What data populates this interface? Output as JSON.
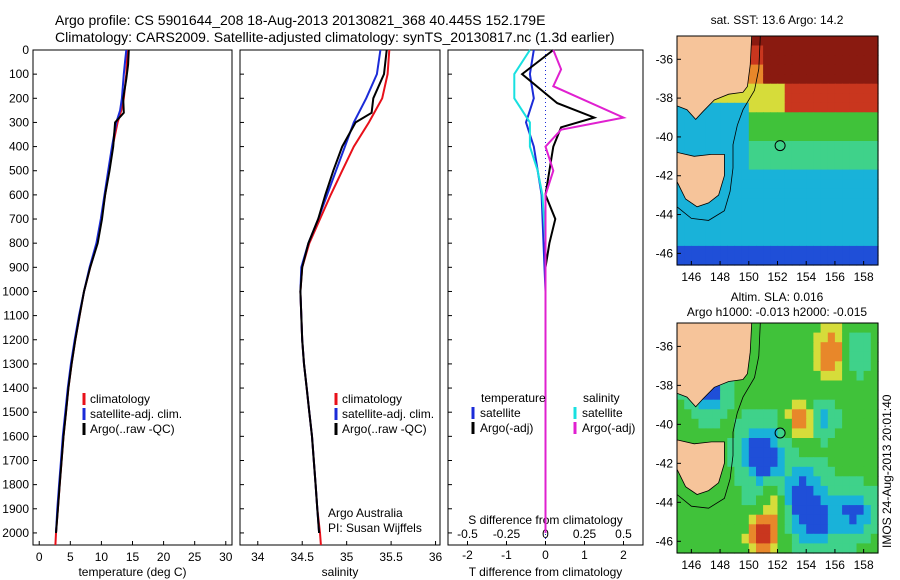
{
  "header": {
    "line1": "Argo profile: CS 5901644_208 18-Aug-2013 20130821_368 40.445S 152.179E",
    "line2": "Climatology: CARS2009. Satellite-adjusted climatology: synTS_20130817.nc (1.3d earlier)"
  },
  "stamp": "IMOS 24-Aug-2013 20:01:40",
  "colors": {
    "clim": "#e8101a",
    "sat": "#1b2bd8",
    "argo": "#000000",
    "sat_s": "#18e0e0",
    "argo_s": "#e020d0",
    "land": "#f6c49a",
    "zero": "#1b2bd8"
  },
  "chart_data": [
    {
      "type": "line",
      "panel": "temperature",
      "xlabel": "temperature (deg C)",
      "xlim": [
        -1,
        31
      ],
      "xticks": [
        0,
        5,
        10,
        15,
        20,
        25,
        30
      ],
      "ylim": [
        2050,
        0
      ],
      "yticks": [
        0,
        100,
        200,
        300,
        400,
        500,
        600,
        700,
        800,
        900,
        1000,
        1100,
        1200,
        1300,
        1400,
        1500,
        1600,
        1700,
        1800,
        1900,
        2000
      ],
      "legend": [
        "climatology",
        "satellite-adj. clim.",
        "Argo(..raw -QC)"
      ],
      "series": [
        {
          "name": "climatology",
          "color": "#e8101a",
          "points": [
            [
              14.2,
              0
            ],
            [
              14.1,
              50
            ],
            [
              14.0,
              100
            ],
            [
              13.6,
              200
            ],
            [
              13.2,
              250
            ],
            [
              12.6,
              300
            ],
            [
              11.8,
              400
            ],
            [
              11.2,
              500
            ],
            [
              10.6,
              600
            ],
            [
              10.0,
              700
            ],
            [
              9.3,
              800
            ],
            [
              8.2,
              900
            ],
            [
              7.2,
              1000
            ],
            [
              6.5,
              1100
            ],
            [
              5.8,
              1200
            ],
            [
              5.2,
              1300
            ],
            [
              4.7,
              1400
            ],
            [
              4.3,
              1500
            ],
            [
              3.9,
              1600
            ],
            [
              3.6,
              1700
            ],
            [
              3.3,
              1800
            ],
            [
              3.0,
              1900
            ],
            [
              2.7,
              2000
            ],
            [
              2.6,
              2050
            ]
          ]
        },
        {
          "name": "satellite-adj. clim.",
          "color": "#1b2bd8",
          "points": [
            [
              14.0,
              0
            ],
            [
              13.8,
              50
            ],
            [
              13.6,
              100
            ],
            [
              13.3,
              200
            ],
            [
              13.0,
              250
            ],
            [
              12.4,
              300
            ],
            [
              11.7,
              400
            ],
            [
              11.1,
              500
            ],
            [
              10.5,
              600
            ],
            [
              9.9,
              700
            ],
            [
              9.2,
              800
            ],
            [
              8.1,
              900
            ],
            [
              7.2,
              1000
            ],
            [
              6.4,
              1100
            ],
            [
              5.7,
              1200
            ],
            [
              5.1,
              1300
            ],
            [
              4.6,
              1400
            ],
            [
              4.2,
              1500
            ],
            [
              3.8,
              1600
            ],
            [
              3.5,
              1700
            ],
            [
              3.2,
              1800
            ],
            [
              2.9,
              1900
            ],
            [
              2.7,
              2000
            ]
          ]
        },
        {
          "name": "Argo(..raw -QC)",
          "color": "#000000",
          "points": [
            [
              14.4,
              0
            ],
            [
              14.3,
              60
            ],
            [
              14.0,
              120
            ],
            [
              13.5,
              200
            ],
            [
              13.6,
              260
            ],
            [
              12.2,
              300
            ],
            [
              11.9,
              400
            ],
            [
              11.3,
              500
            ],
            [
              10.6,
              600
            ],
            [
              10.1,
              700
            ],
            [
              9.4,
              800
            ],
            [
              8.2,
              900
            ],
            [
              7.2,
              1000
            ],
            [
              6.5,
              1100
            ],
            [
              5.8,
              1200
            ],
            [
              5.2,
              1300
            ],
            [
              4.7,
              1400
            ],
            [
              4.3,
              1500
            ],
            [
              3.9,
              1600
            ],
            [
              3.6,
              1700
            ],
            [
              3.3,
              1800
            ],
            [
              3.0,
              1900
            ],
            [
              2.7,
              2000
            ]
          ]
        }
      ]
    },
    {
      "type": "line",
      "panel": "salinity",
      "xlabel": "salinity",
      "xlim": [
        33.8,
        36.05
      ],
      "xticks": [
        34,
        34.5,
        35,
        35.5,
        36
      ],
      "ylim": [
        2050,
        0
      ],
      "legend": [
        "climatology",
        "satellite-adj. clim.",
        "Argo(..raw -QC)"
      ],
      "annotation": [
        "Argo Australia",
        "PI: Susan Wijffels"
      ],
      "series": [
        {
          "name": "climatology",
          "color": "#e8101a",
          "points": [
            [
              35.48,
              0
            ],
            [
              35.46,
              100
            ],
            [
              35.4,
              200
            ],
            [
              35.25,
              300
            ],
            [
              35.08,
              400
            ],
            [
              34.95,
              500
            ],
            [
              34.82,
              600
            ],
            [
              34.7,
              700
            ],
            [
              34.58,
              800
            ],
            [
              34.5,
              900
            ],
            [
              34.48,
              1000
            ],
            [
              34.49,
              1100
            ],
            [
              34.5,
              1200
            ],
            [
              34.52,
              1300
            ],
            [
              34.55,
              1400
            ],
            [
              34.58,
              1500
            ],
            [
              34.61,
              1600
            ],
            [
              34.63,
              1700
            ],
            [
              34.65,
              1800
            ],
            [
              34.67,
              1900
            ],
            [
              34.7,
              2000
            ],
            [
              34.71,
              2050
            ]
          ]
        },
        {
          "name": "satellite-adj. clim.",
          "color": "#1b2bd8",
          "points": [
            [
              35.38,
              0
            ],
            [
              35.34,
              100
            ],
            [
              35.22,
              200
            ],
            [
              35.08,
              300
            ],
            [
              34.98,
              400
            ],
            [
              34.88,
              500
            ],
            [
              34.78,
              600
            ],
            [
              34.68,
              700
            ],
            [
              34.57,
              800
            ],
            [
              34.49,
              900
            ],
            [
              34.48,
              1000
            ],
            [
              34.49,
              1100
            ],
            [
              34.5,
              1200
            ],
            [
              34.52,
              1300
            ],
            [
              34.55,
              1400
            ],
            [
              34.58,
              1500
            ],
            [
              34.61,
              1600
            ],
            [
              34.63,
              1700
            ],
            [
              34.65,
              1800
            ],
            [
              34.67,
              1900
            ],
            [
              34.69,
              2000
            ]
          ]
        },
        {
          "name": "Argo(..raw -QC)",
          "color": "#000000",
          "points": [
            [
              35.45,
              0
            ],
            [
              35.42,
              100
            ],
            [
              35.3,
              200
            ],
            [
              35.28,
              260
            ],
            [
              35.1,
              300
            ],
            [
              34.95,
              400
            ],
            [
              34.85,
              500
            ],
            [
              34.76,
              600
            ],
            [
              34.68,
              700
            ],
            [
              34.57,
              800
            ],
            [
              34.5,
              900
            ],
            [
              34.48,
              1000
            ],
            [
              34.49,
              1100
            ],
            [
              34.5,
              1200
            ],
            [
              34.52,
              1300
            ],
            [
              34.55,
              1400
            ],
            [
              34.58,
              1500
            ],
            [
              34.61,
              1600
            ],
            [
              34.63,
              1700
            ],
            [
              34.65,
              1800
            ],
            [
              34.67,
              1900
            ],
            [
              34.69,
              2000
            ]
          ]
        }
      ]
    },
    {
      "type": "line",
      "panel": "difference",
      "xlabel": "T difference from climatology",
      "xlabel_top": "S difference from climatology",
      "xlim": [
        -2.5,
        2.5
      ],
      "xticks": [
        -2,
        -1,
        0,
        1,
        2
      ],
      "xticks_top": [
        -0.5,
        -0.25,
        0,
        0.25,
        0.5
      ],
      "ylim": [
        2050,
        0
      ],
      "legend_temperature": [
        "temperature",
        "satellite",
        "Argo(-adj)"
      ],
      "legend_salinity": [
        "salinity",
        "satellite",
        "Argo(-adj)"
      ],
      "series": [
        {
          "name": "satellite",
          "group": "temperature",
          "color": "#1b2bd8",
          "points": [
            [
              -0.3,
              0
            ],
            [
              -0.4,
              100
            ],
            [
              -0.3,
              200
            ],
            [
              -0.5,
              300
            ],
            [
              -0.3,
              400
            ],
            [
              -0.2,
              500
            ],
            [
              -0.1,
              600
            ],
            [
              -0.05,
              800
            ],
            [
              0,
              1000
            ],
            [
              0,
              1500
            ],
            [
              0,
              2000
            ]
          ]
        },
        {
          "name": "Argo(-adj)",
          "group": "temperature",
          "color": "#000000",
          "points": [
            [
              0.2,
              0
            ],
            [
              -0.6,
              100
            ],
            [
              0.3,
              220
            ],
            [
              1.25,
              280
            ],
            [
              0.4,
              320
            ],
            [
              0.2,
              400
            ],
            [
              0.1,
              500
            ],
            [
              0.0,
              600
            ],
            [
              0.25,
              700
            ],
            [
              0.1,
              800
            ],
            [
              0.0,
              900
            ],
            [
              0,
              1000
            ],
            [
              0,
              1500
            ],
            [
              0,
              2000
            ]
          ]
        },
        {
          "name": "satellite",
          "group": "salinity",
          "color": "#18e0e0",
          "points": [
            [
              -0.1,
              0
            ],
            [
              -0.2,
              100
            ],
            [
              -0.2,
              200
            ],
            [
              -0.1,
              300
            ],
            [
              -0.1,
              400
            ],
            [
              -0.05,
              500
            ],
            [
              -0.02,
              600
            ],
            [
              0,
              800
            ],
            [
              0,
              1000
            ],
            [
              0,
              1500
            ],
            [
              0,
              2000
            ]
          ]
        },
        {
          "name": "Argo(-adj)",
          "group": "salinity",
          "color": "#e020d0",
          "points": [
            [
              0.05,
              0
            ],
            [
              0.1,
              80
            ],
            [
              0.05,
              150
            ],
            [
              0.5,
              280
            ],
            [
              0.1,
              330
            ],
            [
              0.0,
              400
            ],
            [
              0.05,
              500
            ],
            [
              0.0,
              600
            ],
            [
              0.0,
              800
            ],
            [
              0,
              1000
            ],
            [
              0,
              1500
            ],
            [
              0,
              2000
            ]
          ]
        }
      ]
    },
    {
      "type": "heatmap",
      "panel": "sst-map",
      "title": "sat. SST: 13.6 Argo: 14.2",
      "xticks": [
        146,
        148,
        150,
        152,
        154,
        156,
        158
      ],
      "yticks": [
        -36,
        -38,
        -40,
        -42,
        -44,
        -46
      ],
      "xlim": [
        145,
        159
      ],
      "ylim": [
        -46.6,
        -34.8
      ],
      "marker": [
        152.179,
        -40.445
      ]
    },
    {
      "type": "heatmap",
      "panel": "sla-map",
      "title": "Altim. SLA: 0.016",
      "subtitle": "Argo h1000: -0.013 h2000: -0.015",
      "xticks": [
        146,
        148,
        150,
        152,
        154,
        156,
        158
      ],
      "yticks": [
        -36,
        -38,
        -40,
        -42,
        -44,
        -46
      ],
      "xlim": [
        145,
        159
      ],
      "ylim": [
        -46.6,
        -34.8
      ],
      "marker": [
        152.179,
        -40.445
      ]
    }
  ]
}
